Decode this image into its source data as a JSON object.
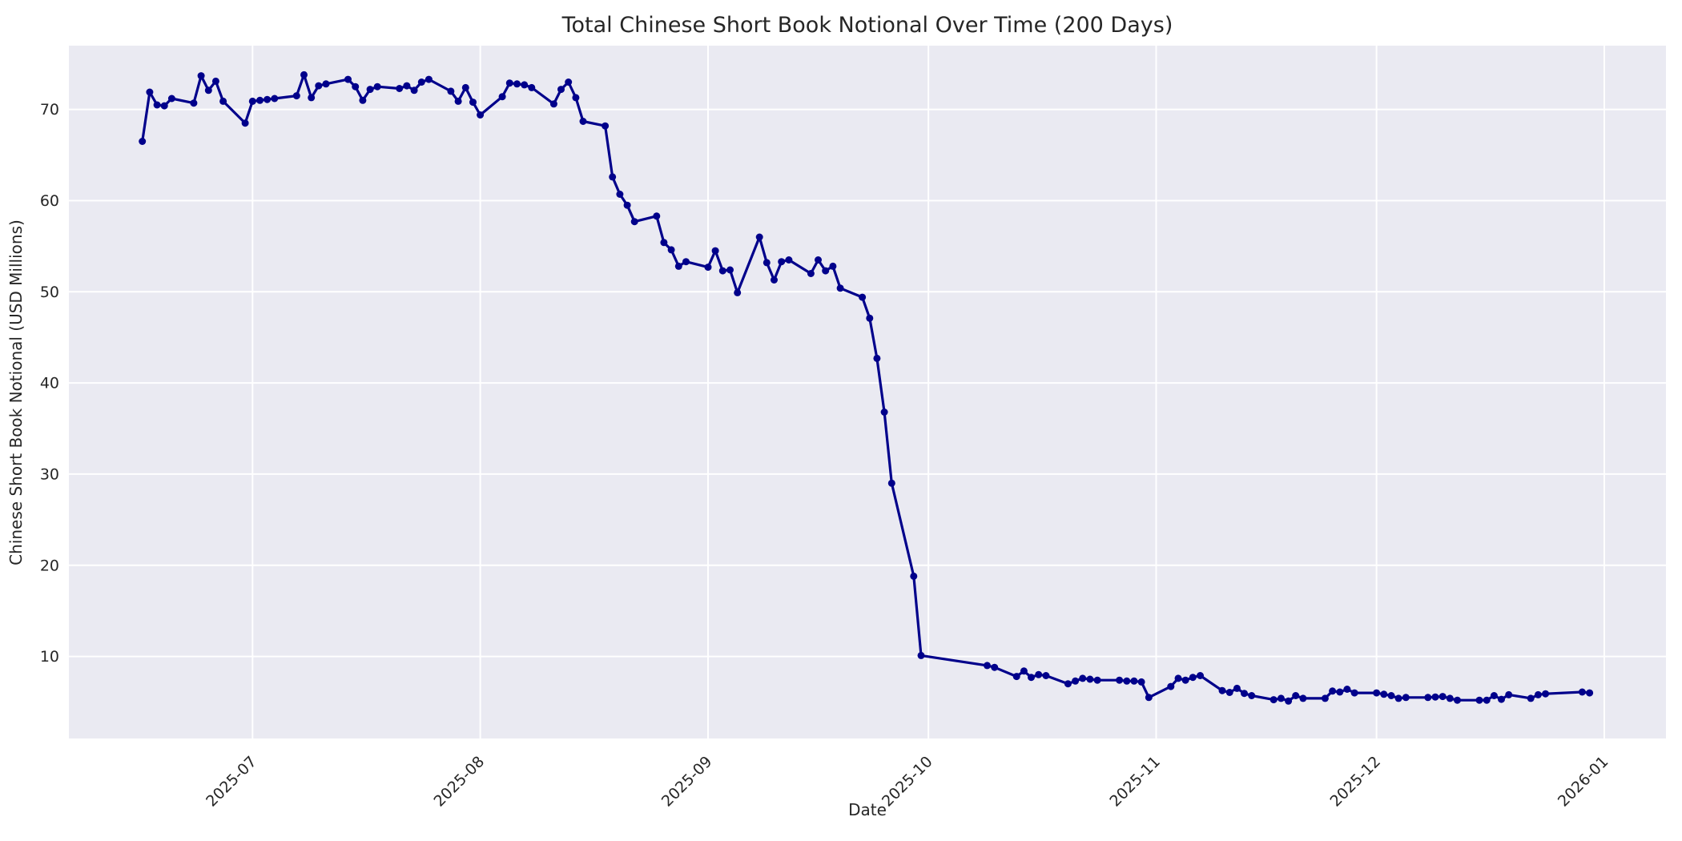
{
  "page": {
    "background": "#ffffff"
  },
  "chart_data": {
    "type": "line",
    "title": "Total Chinese Short Book Notional Over Time (200 Days)",
    "xlabel": "Date",
    "ylabel": "Chinese Short Book Notional (USD Millions)",
    "legend": false,
    "grid": true,
    "style": {
      "plot_bg": "#eaeaf2",
      "grid_color": "#ffffff",
      "line_color": "#00008b",
      "marker": "circle",
      "marker_radius": 4.5,
      "line_width": 3.2,
      "text_color": "#262626"
    },
    "x_epoch": "2025-06-16",
    "xlim_days": [
      -10,
      207.4
    ],
    "ylim": [
      1,
      77
    ],
    "y_ticks": [
      10,
      20,
      30,
      40,
      50,
      60,
      70
    ],
    "x_ticks": [
      {
        "label": "2025-07",
        "date": "2025-07-01"
      },
      {
        "label": "2025-08",
        "date": "2025-08-01"
      },
      {
        "label": "2025-09",
        "date": "2025-09-01"
      },
      {
        "label": "2025-10",
        "date": "2025-10-01"
      },
      {
        "label": "2025-11",
        "date": "2025-11-01"
      },
      {
        "label": "2025-12",
        "date": "2025-12-01"
      },
      {
        "label": "2026-01",
        "date": "2026-01-01"
      }
    ],
    "points": [
      [
        "2025-06-16",
        66.5
      ],
      [
        "2025-06-17",
        71.9
      ],
      [
        "2025-06-18",
        70.5
      ],
      [
        "2025-06-19",
        70.4
      ],
      [
        "2025-06-20",
        71.2
      ],
      [
        "2025-06-23",
        70.7
      ],
      [
        "2025-06-24",
        73.7
      ],
      [
        "2025-06-25",
        72.1
      ],
      [
        "2025-06-26",
        73.1
      ],
      [
        "2025-06-27",
        70.9
      ],
      [
        "2025-06-30",
        68.5
      ],
      [
        "2025-07-01",
        70.9
      ],
      [
        "2025-07-02",
        71.0
      ],
      [
        "2025-07-03",
        71.1
      ],
      [
        "2025-07-04",
        71.2
      ],
      [
        "2025-07-07",
        71.5
      ],
      [
        "2025-07-08",
        73.8
      ],
      [
        "2025-07-09",
        71.3
      ],
      [
        "2025-07-10",
        72.6
      ],
      [
        "2025-07-11",
        72.8
      ],
      [
        "2025-07-14",
        73.3
      ],
      [
        "2025-07-15",
        72.5
      ],
      [
        "2025-07-16",
        71.0
      ],
      [
        "2025-07-17",
        72.2
      ],
      [
        "2025-07-18",
        72.5
      ],
      [
        "2025-07-21",
        72.3
      ],
      [
        "2025-07-22",
        72.6
      ],
      [
        "2025-07-23",
        72.1
      ],
      [
        "2025-07-24",
        73.0
      ],
      [
        "2025-07-25",
        73.3
      ],
      [
        "2025-07-28",
        72.0
      ],
      [
        "2025-07-29",
        70.9
      ],
      [
        "2025-07-30",
        72.4
      ],
      [
        "2025-07-31",
        70.8
      ],
      [
        "2025-08-01",
        69.4
      ],
      [
        "2025-08-04",
        71.4
      ],
      [
        "2025-08-05",
        72.9
      ],
      [
        "2025-08-06",
        72.8
      ],
      [
        "2025-08-07",
        72.7
      ],
      [
        "2025-08-08",
        72.4
      ],
      [
        "2025-08-11",
        70.6
      ],
      [
        "2025-08-12",
        72.2
      ],
      [
        "2025-08-13",
        73.0
      ],
      [
        "2025-08-14",
        71.3
      ],
      [
        "2025-08-15",
        68.7
      ],
      [
        "2025-08-18",
        68.2
      ],
      [
        "2025-08-19",
        62.6
      ],
      [
        "2025-08-20",
        60.7
      ],
      [
        "2025-08-21",
        59.5
      ],
      [
        "2025-08-22",
        57.7
      ],
      [
        "2025-08-25",
        58.3
      ],
      [
        "2025-08-26",
        55.4
      ],
      [
        "2025-08-27",
        54.6
      ],
      [
        "2025-08-28",
        52.8
      ],
      [
        "2025-08-29",
        53.3
      ],
      [
        "2025-09-01",
        52.7
      ],
      [
        "2025-09-02",
        54.5
      ],
      [
        "2025-09-03",
        52.3
      ],
      [
        "2025-09-04",
        52.4
      ],
      [
        "2025-09-05",
        49.9
      ],
      [
        "2025-09-08",
        56.0
      ],
      [
        "2025-09-09",
        53.2
      ],
      [
        "2025-09-10",
        51.3
      ],
      [
        "2025-09-11",
        53.3
      ],
      [
        "2025-09-12",
        53.5
      ],
      [
        "2025-09-15",
        52.0
      ],
      [
        "2025-09-16",
        53.5
      ],
      [
        "2025-09-17",
        52.3
      ],
      [
        "2025-09-18",
        52.8
      ],
      [
        "2025-09-19",
        50.4
      ],
      [
        "2025-09-22",
        49.4
      ],
      [
        "2025-09-23",
        47.1
      ],
      [
        "2025-09-24",
        42.7
      ],
      [
        "2025-09-25",
        36.8
      ],
      [
        "2025-09-26",
        29.0
      ],
      [
        "2025-09-29",
        18.8
      ],
      [
        "2025-09-30",
        10.1
      ],
      [
        "2025-10-09",
        9.0
      ],
      [
        "2025-10-10",
        8.8
      ],
      [
        "2025-10-13",
        7.8
      ],
      [
        "2025-10-14",
        8.4
      ],
      [
        "2025-10-15",
        7.7
      ],
      [
        "2025-10-16",
        8.0
      ],
      [
        "2025-10-17",
        7.9
      ],
      [
        "2025-10-20",
        7.0
      ],
      [
        "2025-10-21",
        7.3
      ],
      [
        "2025-10-22",
        7.6
      ],
      [
        "2025-10-23",
        7.5
      ],
      [
        "2025-10-24",
        7.4
      ],
      [
        "2025-10-27",
        7.4
      ],
      [
        "2025-10-28",
        7.3
      ],
      [
        "2025-10-29",
        7.3
      ],
      [
        "2025-10-30",
        7.2
      ],
      [
        "2025-10-31",
        5.5
      ],
      [
        "2025-11-03",
        6.7
      ],
      [
        "2025-11-04",
        7.6
      ],
      [
        "2025-11-05",
        7.4
      ],
      [
        "2025-11-06",
        7.7
      ],
      [
        "2025-11-07",
        7.9
      ],
      [
        "2025-11-10",
        6.25
      ],
      [
        "2025-11-11",
        6.05
      ],
      [
        "2025-11-12",
        6.5
      ],
      [
        "2025-11-13",
        5.95
      ],
      [
        "2025-11-14",
        5.7
      ],
      [
        "2025-11-17",
        5.25
      ],
      [
        "2025-11-18",
        5.4
      ],
      [
        "2025-11-19",
        5.1
      ],
      [
        "2025-11-20",
        5.7
      ],
      [
        "2025-11-21",
        5.4
      ],
      [
        "2025-11-24",
        5.4
      ],
      [
        "2025-11-25",
        6.2
      ],
      [
        "2025-11-26",
        6.1
      ],
      [
        "2025-11-27",
        6.4
      ],
      [
        "2025-11-28",
        6.0
      ],
      [
        "2025-12-01",
        6.0
      ],
      [
        "2025-12-02",
        5.85
      ],
      [
        "2025-12-03",
        5.7
      ],
      [
        "2025-12-04",
        5.4
      ],
      [
        "2025-12-05",
        5.5
      ],
      [
        "2025-12-08",
        5.5
      ],
      [
        "2025-12-09",
        5.55
      ],
      [
        "2025-12-10",
        5.6
      ],
      [
        "2025-12-11",
        5.4
      ],
      [
        "2025-12-12",
        5.2
      ],
      [
        "2025-12-15",
        5.2
      ],
      [
        "2025-12-16",
        5.2
      ],
      [
        "2025-12-17",
        5.7
      ],
      [
        "2025-12-18",
        5.3
      ],
      [
        "2025-12-19",
        5.8
      ],
      [
        "2025-12-22",
        5.4
      ],
      [
        "2025-12-23",
        5.8
      ],
      [
        "2025-12-24",
        5.9
      ],
      [
        "2025-12-29",
        6.1
      ],
      [
        "2025-12-30",
        6.0
      ]
    ]
  }
}
